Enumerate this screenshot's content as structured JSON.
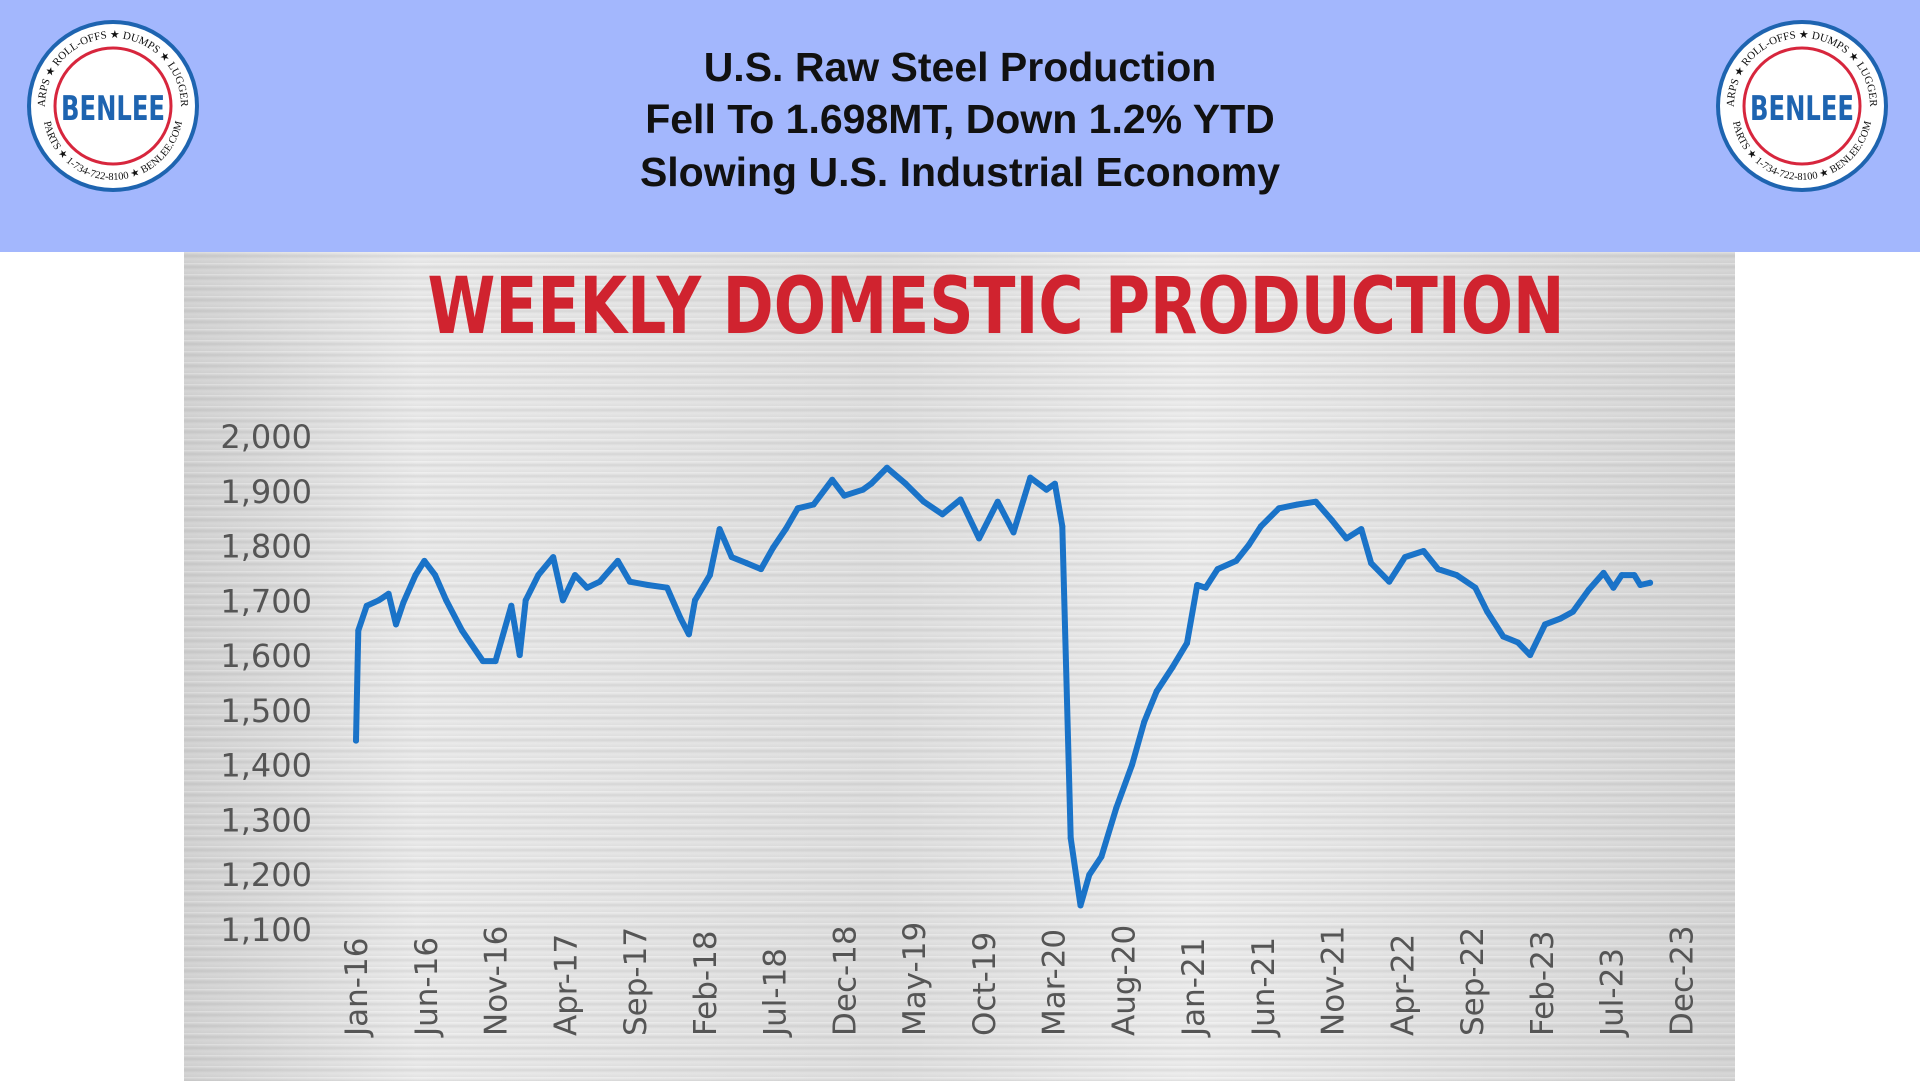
{
  "header": {
    "line1": "U.S. Raw Steel Production",
    "line2": "Fell To 1.698MT, Down 1.2% YTD",
    "line3": "Slowing U.S. Industrial Economy",
    "background_color": "#a3b7fd"
  },
  "logo": {
    "brand": "BENLEE",
    "ring_text_top": "TARPS ★ ROLL-OFFS ★ DUMPS ★ LUGGERS",
    "ring_text_bottom": "PARTS ★ 1-734-722-8100 ★ BENLEE.COM",
    "colors": {
      "red": "#d7263d",
      "blue": "#1e64b0"
    }
  },
  "chart_data": {
    "type": "line",
    "title": "WEEKLY DOMESTIC PRODUCTION",
    "title_color": "#d0232f",
    "line_color": "#1a73c8",
    "xlabel": "",
    "ylabel": "",
    "ylim": [
      1100,
      2000
    ],
    "xlim": [
      "2016-01",
      "2023-12"
    ],
    "grid": false,
    "y_ticks": [
      "2,000",
      "1,900",
      "1,800",
      "1,700",
      "1,600",
      "1,500",
      "1,400",
      "1,300",
      "1,200",
      "1,100"
    ],
    "y_tick_values": [
      2000,
      1900,
      1800,
      1700,
      1600,
      1500,
      1400,
      1300,
      1200,
      1100
    ],
    "x_ticks": [
      "Jan-16",
      "Jun-16",
      "Nov-16",
      "Apr-17",
      "Sep-17",
      "Feb-18",
      "Jul-18",
      "Dec-18",
      "May-19",
      "Oct-19",
      "Mar-20",
      "Aug-20",
      "Jan-21",
      "Jun-21",
      "Nov-21",
      "Apr-22",
      "Sep-22",
      "Feb-23",
      "Jul-23",
      "Dec-23"
    ],
    "series": [
      {
        "x": [
          "2016-01-01",
          "2016-01-06",
          "2016-01-24",
          "2016-02-20",
          "2016-03-11",
          "2016-03-27",
          "2016-04-13",
          "2016-05-09",
          "2016-05-28",
          "2016-06-21",
          "2016-07-15",
          "2016-08-19",
          "2016-10-04",
          "2016-11-01",
          "2016-12-05",
          "2016-12-23",
          "2017-01-06",
          "2017-02-03",
          "2017-03-05",
          "2017-03-26",
          "2017-04-22",
          "2017-05-18",
          "2017-06-15",
          "2017-07-24",
          "2017-08-20",
          "2017-09-29",
          "2017-11-10",
          "2017-12-09",
          "2017-12-27",
          "2018-01-10",
          "2018-02-12",
          "2018-03-03",
          "2018-03-29",
          "2018-05-01",
          "2018-06-02",
          "2018-06-28",
          "2018-07-25",
          "2018-08-21",
          "2018-09-25",
          "2018-11-05",
          "2018-12-01",
          "2019-01-11",
          "2019-01-29",
          "2019-03-03",
          "2019-04-13",
          "2019-05-22",
          "2019-07-02",
          "2019-08-11",
          "2019-09-21",
          "2019-11-01",
          "2019-12-05",
          "2020-01-11",
          "2020-02-16",
          "2020-03-04",
          "2020-03-20",
          "2020-04-08",
          "2020-04-29",
          "2020-05-18",
          "2020-06-14",
          "2020-07-16",
          "2020-08-20",
          "2020-09-16",
          "2020-10-13",
          "2020-11-17",
          "2020-12-18",
          "2021-01-10",
          "2021-01-28",
          "2021-02-24",
          "2021-04-04",
          "2021-05-01",
          "2021-05-27",
          "2021-07-06",
          "2021-08-16",
          "2021-09-25",
          "2021-10-30",
          "2021-12-01",
          "2022-01-03",
          "2022-01-24",
          "2022-03-03",
          "2022-04-07",
          "2022-05-17",
          "2022-06-18",
          "2022-07-28",
          "2022-09-08",
          "2022-10-04",
          "2022-11-08",
          "2022-12-10",
          "2023-01-06",
          "2023-02-08",
          "2023-03-12",
          "2023-04-08",
          "2023-05-12",
          "2023-06-14",
          "2023-07-05",
          "2023-07-23",
          "2023-08-20",
          "2023-09-03",
          "2023-09-24"
        ],
        "values": [
          1444,
          1645,
          1690,
          1700,
          1712,
          1656,
          1696,
          1746,
          1772,
          1746,
          1700,
          1645,
          1589,
          1589,
          1690,
          1600,
          1700,
          1746,
          1779,
          1700,
          1746,
          1723,
          1734,
          1772,
          1734,
          1728,
          1723,
          1667,
          1638,
          1700,
          1746,
          1830,
          1779,
          1768,
          1757,
          1796,
          1830,
          1868,
          1875,
          1920,
          1891,
          1902,
          1913,
          1942,
          1913,
          1880,
          1857,
          1884,
          1813,
          1880,
          1824,
          1924,
          1902,
          1913,
          1835,
          1266,
          1143,
          1199,
          1232,
          1321,
          1400,
          1478,
          1534,
          1578,
          1622,
          1728,
          1723,
          1757,
          1772,
          1801,
          1835,
          1868,
          1875,
          1880,
          1846,
          1813,
          1830,
          1768,
          1734,
          1779,
          1790,
          1757,
          1746,
          1723,
          1679,
          1634,
          1623,
          1600,
          1656,
          1667,
          1679,
          1719,
          1750,
          1723,
          1746,
          1746,
          1728,
          1732
        ]
      }
    ]
  }
}
